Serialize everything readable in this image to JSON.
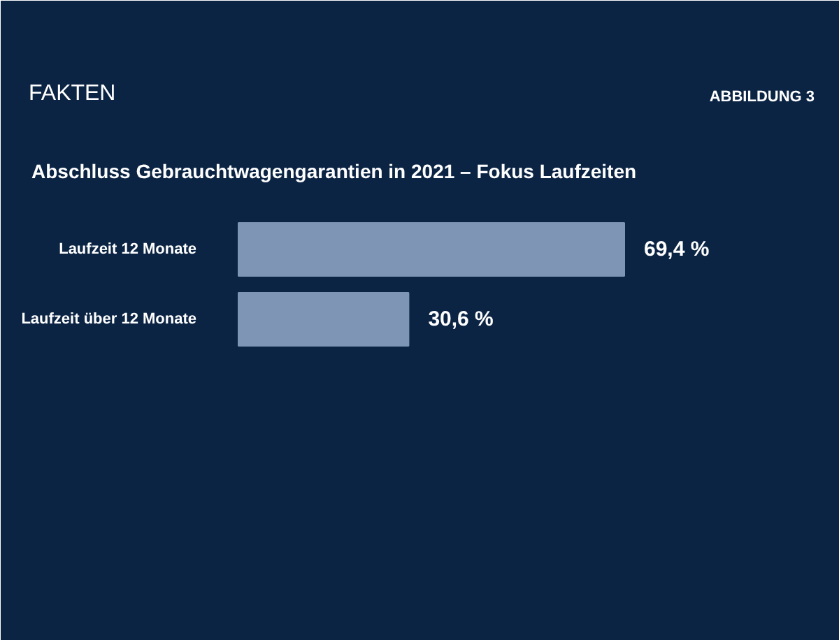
{
  "chart_data": {
    "type": "bar",
    "orientation": "horizontal",
    "title": "FAKTEN",
    "subtitle": "Abschluss Gebrauchtwagengarantien in 2021 – Fokus Laufzeiten",
    "annotations": [
      "ABBILDUNG 3"
    ],
    "categories": [
      "Laufzeit 12 Monate",
      "Laufzeit über 12 Monate"
    ],
    "values": [
      69.4,
      30.6
    ],
    "value_labels": [
      "69,4 %",
      "30,6 %"
    ],
    "color": "#7f95b5",
    "grid": false
  }
}
